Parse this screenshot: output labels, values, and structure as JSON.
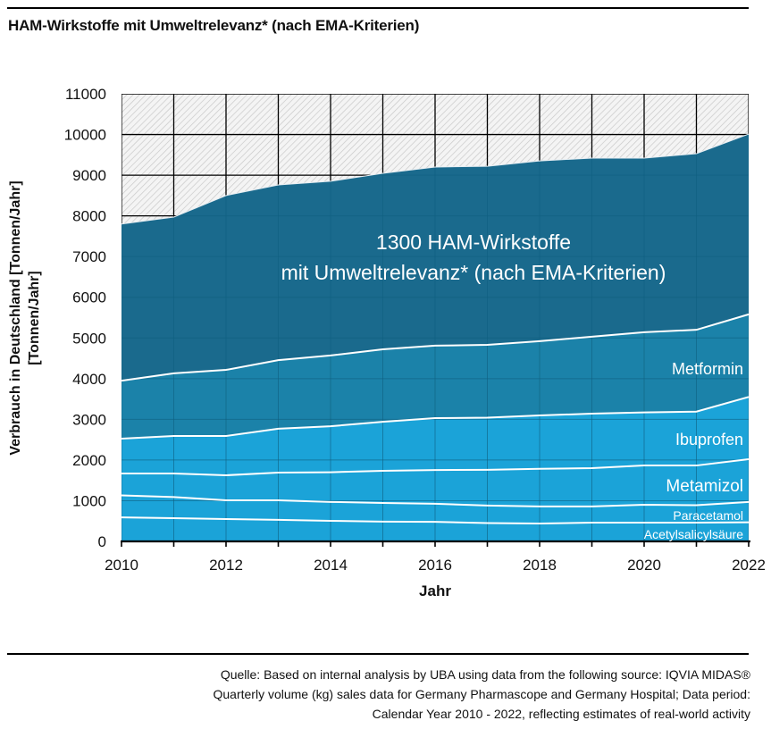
{
  "header": {
    "title": "HAM-Wirkstoffe mit Umweltrelevanz* (nach EMA-Kriterien)"
  },
  "footer": {
    "source_lines": [
      "Quelle: Based on internal analysis by UBA using data from the following source: IQVIA MIDAS®",
      "Quarterly volume (kg) sales data for Germany Pharmascope and Germany Hospital; Data period:",
      "Calendar Year 2010 - 2022, reflecting estimates of real-world activity"
    ]
  },
  "chart_data": {
    "type": "area",
    "stacked": true,
    "title": "HAM-Wirkstoffe mit Umweltrelevanz* (nach EMA-Kriterien)",
    "xlabel": "Jahr",
    "ylabel_lines": [
      "Verbrauch in Deutschland [Tonnen/Jahr]",
      "[Tonnen/Jahr]"
    ],
    "x": [
      2010,
      2011,
      2012,
      2013,
      2014,
      2015,
      2016,
      2017,
      2018,
      2019,
      2020,
      2021,
      2022
    ],
    "xlim": [
      2010,
      2022
    ],
    "x_tick_labels": [
      "2010",
      "2012",
      "2014",
      "2016",
      "2018",
      "2020",
      "2022"
    ],
    "ylim": [
      0,
      11000
    ],
    "y_tick_labels": [
      "0",
      "1000",
      "2000",
      "3000",
      "4000",
      "5000",
      "6000",
      "7000",
      "8000",
      "9000",
      "10000",
      "11000"
    ],
    "grid": true,
    "series": [
      {
        "name": "Acetylsalicylsäure",
        "color": "#1ba3d8",
        "values": [
          590,
          570,
          550,
          530,
          505,
          485,
          480,
          450,
          440,
          460,
          460,
          460,
          470
        ]
      },
      {
        "name": "Paracetamol",
        "color": "#1ba3d8",
        "values": [
          540,
          520,
          460,
          480,
          465,
          460,
          445,
          430,
          420,
          400,
          440,
          430,
          500
        ]
      },
      {
        "name": "Metamizol",
        "color": "#1ba3d8",
        "values": [
          540,
          580,
          615,
          680,
          730,
          790,
          830,
          880,
          925,
          940,
          965,
          975,
          1050
        ]
      },
      {
        "name": "Ibuprofen",
        "color": "#1ba3d8",
        "values": [
          855,
          920,
          965,
          1080,
          1130,
          1205,
          1275,
          1280,
          1310,
          1340,
          1305,
          1325,
          1530
        ]
      },
      {
        "name": "Metformin",
        "color": "#1b82a9",
        "values": [
          1425,
          1540,
          1625,
          1685,
          1740,
          1780,
          1780,
          1790,
          1825,
          1890,
          1970,
          2010,
          2030
        ]
      },
      {
        "name": "1300 HAM-Wirkstoffe mit Umweltrelevanz* (nach EMA-Kriterien)",
        "color": "#1a6a8d",
        "values": [
          3850,
          3840,
          4285,
          4305,
          4280,
          4325,
          4390,
          4390,
          4430,
          4390,
          4280,
          4330,
          4430
        ]
      }
    ],
    "annotations": {
      "main_lines": [
        "1300 HAM-Wirkstoffe",
        "mit Umweltrelevanz* (nach EMA-Kriterien)"
      ],
      "series_labels": [
        "Acetylsalicylsäure",
        "Paracetamol",
        "Metamizol",
        "Ibuprofen",
        "Metformin"
      ]
    }
  }
}
